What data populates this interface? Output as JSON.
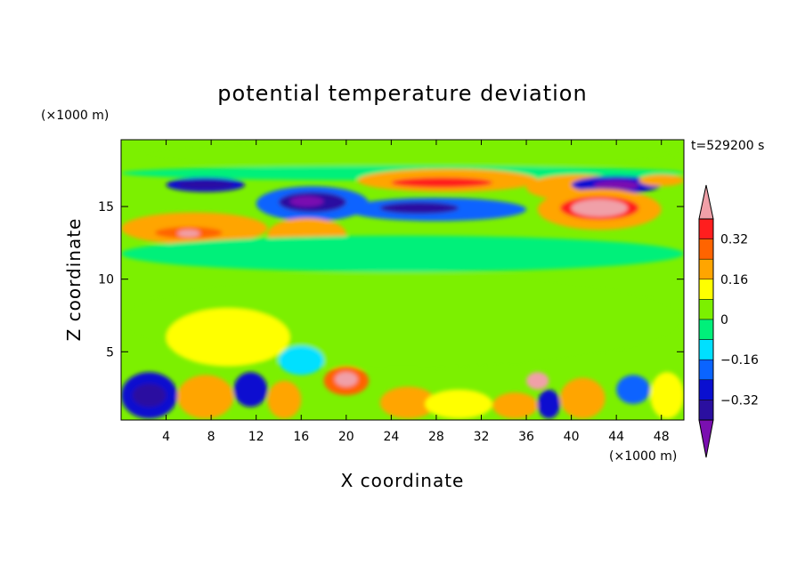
{
  "chart_data": {
    "type": "heatmap",
    "title": "potential temperature deviation",
    "xlabel": "X coordinate",
    "ylabel": "Z coordinate",
    "x_unit": "(×1000 m)",
    "y_unit": "(×1000 m)",
    "time_label": "t=529200 s",
    "xlim": [
      0,
      50
    ],
    "ylim": [
      0.3,
      19.6
    ],
    "x_ticks": [
      4,
      8,
      12,
      16,
      20,
      24,
      28,
      32,
      36,
      40,
      44,
      48
    ],
    "y_ticks": [
      5,
      10,
      15
    ],
    "colorbar": {
      "levels": [
        -0.48,
        -0.4,
        -0.32,
        -0.24,
        -0.16,
        -0.08,
        0,
        0.08,
        0.16,
        0.24,
        0.32,
        0.4,
        0.48
      ],
      "colors": [
        "#7a0fb0",
        "#2a0fa0",
        "#0a0fd0",
        "#0a64ff",
        "#00e0ff",
        "#00f07a",
        "#7cf000",
        "#ffff00",
        "#ffa500",
        "#ff6400",
        "#ff1e1e",
        "#f0a0a8"
      ],
      "tick_labels": [
        "0.32",
        "0.16",
        "0",
        "−0.16",
        "−0.32"
      ],
      "tick_values": [
        0.32,
        0.16,
        0,
        -0.16,
        -0.32
      ],
      "extend": "both"
    },
    "regions": [
      {
        "x": [
          1,
          50
        ],
        "z": [
          17.6,
          19.6
        ],
        "value": 0.04
      },
      {
        "x": [
          0,
          50
        ],
        "z": [
          16.8,
          17.8
        ],
        "value": -0.08
      },
      {
        "x": [
          4,
          11
        ],
        "z": [
          16.0,
          17.0
        ],
        "value": -0.3
      },
      {
        "x": [
          5,
          10
        ],
        "z": [
          16.2,
          16.8
        ],
        "value": -0.4
      },
      {
        "x": [
          21,
          37
        ],
        "z": [
          16.0,
          17.6
        ],
        "value": 0.22
      },
      {
        "x": [
          24,
          33
        ],
        "z": [
          16.3,
          17.0
        ],
        "value": 0.34
      },
      {
        "x": [
          36,
          45
        ],
        "z": [
          15.4,
          17.2
        ],
        "value": 0.2
      },
      {
        "x": [
          40,
          48
        ],
        "z": [
          15.9,
          17.1
        ],
        "value": -0.32
      },
      {
        "x": [
          42,
          46
        ],
        "z": [
          16.1,
          16.8
        ],
        "value": -0.42
      },
      {
        "x": [
          46,
          50
        ],
        "z": [
          16.4,
          17.2
        ],
        "value": 0.2
      },
      {
        "x": [
          12,
          22
        ],
        "z": [
          14.0,
          16.4
        ],
        "value": -0.24
      },
      {
        "x": [
          14,
          20
        ],
        "z": [
          14.6,
          16.0
        ],
        "value": -0.34
      },
      {
        "x": [
          15,
          18
        ],
        "z": [
          15.0,
          15.7
        ],
        "value": -0.44
      },
      {
        "x": [
          20,
          36
        ],
        "z": [
          14.0,
          15.6
        ],
        "value": -0.24
      },
      {
        "x": [
          23,
          30
        ],
        "z": [
          14.5,
          15.3
        ],
        "value": -0.36
      },
      {
        "x": [
          37,
          48
        ],
        "z": [
          13.4,
          16.2
        ],
        "value": 0.22
      },
      {
        "x": [
          39,
          46
        ],
        "z": [
          14.1,
          15.7
        ],
        "value": 0.36
      },
      {
        "x": [
          40,
          45
        ],
        "z": [
          14.3,
          15.5
        ],
        "value": 0.45
      },
      {
        "x": [
          0,
          13
        ],
        "z": [
          12.4,
          14.6
        ],
        "value": 0.18
      },
      {
        "x": [
          3,
          9
        ],
        "z": [
          12.8,
          13.6
        ],
        "value": 0.3
      },
      {
        "x": [
          5,
          7
        ],
        "z": [
          12.9,
          13.4
        ],
        "value": 0.42
      },
      {
        "x": [
          13,
          20
        ],
        "z": [
          12.0,
          14.2
        ],
        "value": 0.18
      },
      {
        "x": [
          0,
          50
        ],
        "z": [
          10.5,
          13.0
        ],
        "value": -0.06
      },
      {
        "x": [
          0,
          50
        ],
        "z": [
          3.8,
          10.5
        ],
        "value": 0.03
      },
      {
        "x": [
          4,
          15
        ],
        "z": [
          4.0,
          8.0
        ],
        "value": 0.08
      },
      {
        "x": [
          30,
          40
        ],
        "z": [
          4.0,
          9.0
        ],
        "value": 0.06
      },
      {
        "x": [
          14,
          18
        ],
        "z": [
          3.4,
          5.4
        ],
        "value": -0.1
      },
      {
        "x": [
          0,
          5
        ],
        "z": [
          0.4,
          3.6
        ],
        "value": -0.3
      },
      {
        "x": [
          1,
          4
        ],
        "z": [
          1.2,
          2.8
        ],
        "value": -0.4
      },
      {
        "x": [
          5,
          10
        ],
        "z": [
          0.4,
          3.4
        ],
        "value": 0.2
      },
      {
        "x": [
          10,
          13
        ],
        "z": [
          1.2,
          3.6
        ],
        "value": -0.32
      },
      {
        "x": [
          13,
          16
        ],
        "z": [
          0.4,
          3.0
        ],
        "value": 0.22
      },
      {
        "x": [
          18,
          22
        ],
        "z": [
          2.0,
          4.0
        ],
        "value": 0.28
      },
      {
        "x": [
          19,
          21
        ],
        "z": [
          2.6,
          3.6
        ],
        "value": 0.42
      },
      {
        "x": [
          23,
          28
        ],
        "z": [
          0.4,
          2.6
        ],
        "value": 0.18
      },
      {
        "x": [
          27,
          33
        ],
        "z": [
          0.4,
          2.4
        ],
        "value": 0.1
      },
      {
        "x": [
          33,
          37
        ],
        "z": [
          0.4,
          2.2
        ],
        "value": 0.18
      },
      {
        "x": [
          36,
          38
        ],
        "z": [
          2.4,
          3.6
        ],
        "value": 0.4
      },
      {
        "x": [
          37,
          39
        ],
        "z": [
          0.4,
          2.4
        ],
        "value": -0.32
      },
      {
        "x": [
          39,
          43
        ],
        "z": [
          0.4,
          3.2
        ],
        "value": 0.22
      },
      {
        "x": [
          44,
          47
        ],
        "z": [
          1.4,
          3.4
        ],
        "value": -0.18
      },
      {
        "x": [
          47,
          50
        ],
        "z": [
          0.4,
          3.6
        ],
        "value": 0.14
      }
    ]
  }
}
